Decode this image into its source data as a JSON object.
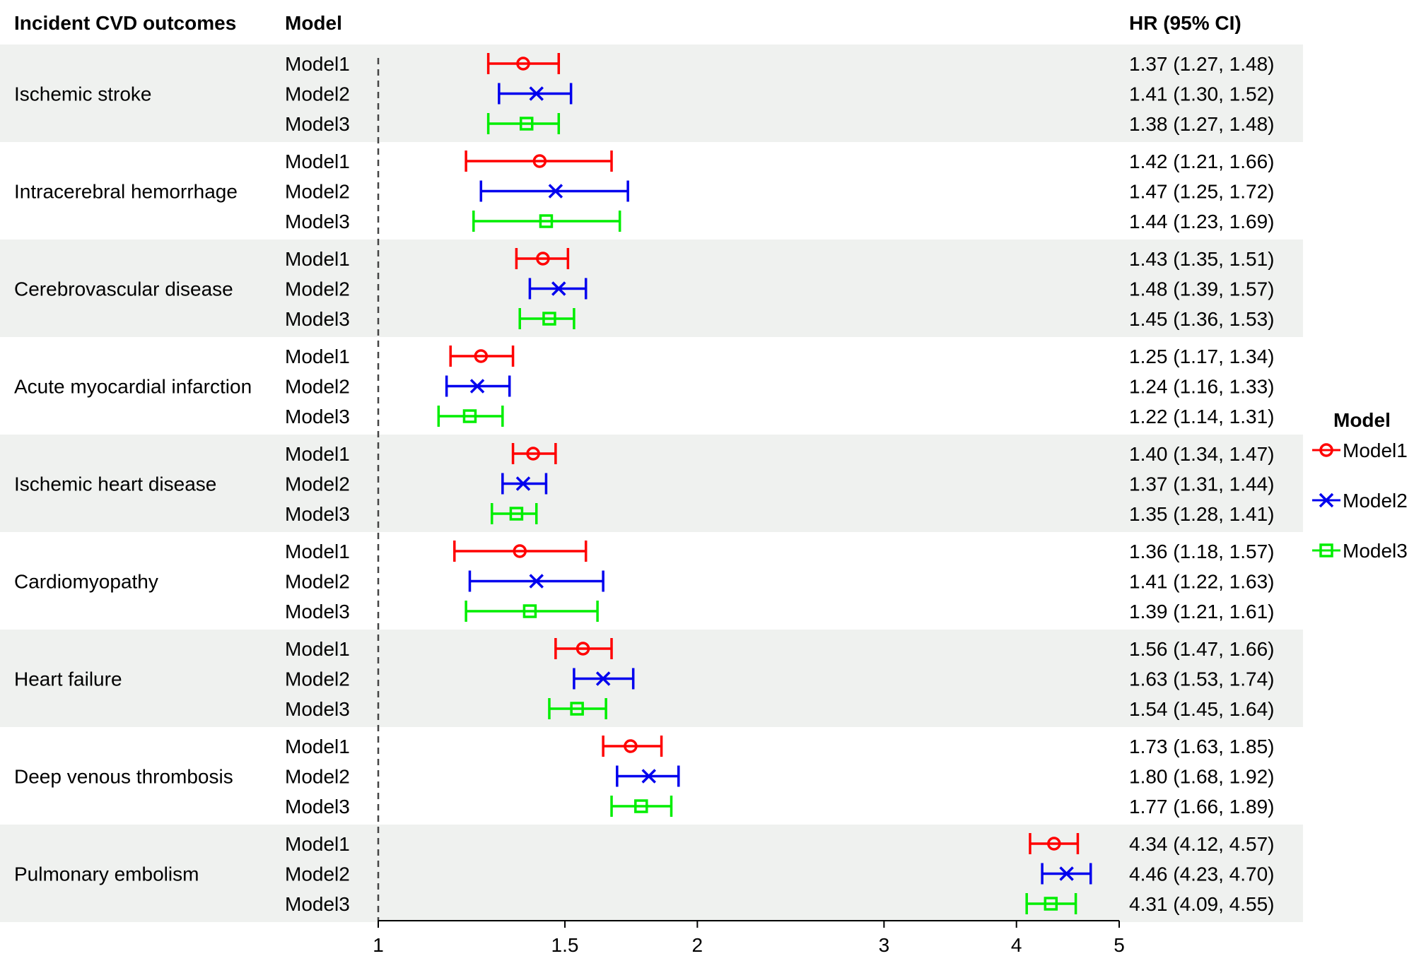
{
  "chart_data": {
    "type": "forest",
    "headers": {
      "outcome": "Incident CVD outcomes",
      "model": "Model",
      "hr": "HR (95% CI)"
    },
    "xaxis": {
      "scale": "log",
      "reference_line": 1,
      "ticks": [
        1,
        1.5,
        2,
        3,
        4,
        5
      ],
      "tick_labels": [
        "1",
        "1.5",
        "2",
        "3",
        "4",
        "5"
      ]
    },
    "legend": {
      "title": "Model",
      "placement": "right",
      "entries": [
        {
          "name": "Model1",
          "color": "#ff0000",
          "marker": "circle"
        },
        {
          "name": "Model2",
          "color": "#0000ee",
          "marker": "x"
        },
        {
          "name": "Model3",
          "color": "#00ee00",
          "marker": "square"
        }
      ]
    },
    "groups": [
      {
        "outcome": "Ischemic stroke",
        "shaded": true,
        "rows": [
          {
            "model": "Model1",
            "hr": 1.37,
            "lo": 1.27,
            "hi": 1.48,
            "text": "1.37 (1.27, 1.48)"
          },
          {
            "model": "Model2",
            "hr": 1.41,
            "lo": 1.3,
            "hi": 1.52,
            "text": "1.41 (1.30, 1.52)"
          },
          {
            "model": "Model3",
            "hr": 1.38,
            "lo": 1.27,
            "hi": 1.48,
            "text": "1.38 (1.27, 1.48)"
          }
        ]
      },
      {
        "outcome": "Intracerebral hemorrhage",
        "shaded": false,
        "rows": [
          {
            "model": "Model1",
            "hr": 1.42,
            "lo": 1.21,
            "hi": 1.66,
            "text": "1.42 (1.21, 1.66)"
          },
          {
            "model": "Model2",
            "hr": 1.47,
            "lo": 1.25,
            "hi": 1.72,
            "text": "1.47 (1.25, 1.72)"
          },
          {
            "model": "Model3",
            "hr": 1.44,
            "lo": 1.23,
            "hi": 1.69,
            "text": "1.44 (1.23, 1.69)"
          }
        ]
      },
      {
        "outcome": "Cerebrovascular disease",
        "shaded": true,
        "rows": [
          {
            "model": "Model1",
            "hr": 1.43,
            "lo": 1.35,
            "hi": 1.51,
            "text": "1.43 (1.35, 1.51)"
          },
          {
            "model": "Model2",
            "hr": 1.48,
            "lo": 1.39,
            "hi": 1.57,
            "text": "1.48 (1.39, 1.57)"
          },
          {
            "model": "Model3",
            "hr": 1.45,
            "lo": 1.36,
            "hi": 1.53,
            "text": "1.45 (1.36, 1.53)"
          }
        ]
      },
      {
        "outcome": "Acute myocardial infarction",
        "shaded": false,
        "rows": [
          {
            "model": "Model1",
            "hr": 1.25,
            "lo": 1.17,
            "hi": 1.34,
            "text": "1.25 (1.17, 1.34)"
          },
          {
            "model": "Model2",
            "hr": 1.24,
            "lo": 1.16,
            "hi": 1.33,
            "text": "1.24 (1.16, 1.33)"
          },
          {
            "model": "Model3",
            "hr": 1.22,
            "lo": 1.14,
            "hi": 1.31,
            "text": "1.22 (1.14, 1.31)"
          }
        ]
      },
      {
        "outcome": "Ischemic heart disease",
        "shaded": true,
        "rows": [
          {
            "model": "Model1",
            "hr": 1.4,
            "lo": 1.34,
            "hi": 1.47,
            "text": "1.40 (1.34, 1.47)"
          },
          {
            "model": "Model2",
            "hr": 1.37,
            "lo": 1.31,
            "hi": 1.44,
            "text": "1.37 (1.31, 1.44)"
          },
          {
            "model": "Model3",
            "hr": 1.35,
            "lo": 1.28,
            "hi": 1.41,
            "text": "1.35 (1.28, 1.41)"
          }
        ]
      },
      {
        "outcome": "Cardiomyopathy",
        "shaded": false,
        "rows": [
          {
            "model": "Model1",
            "hr": 1.36,
            "lo": 1.18,
            "hi": 1.57,
            "text": "1.36 (1.18, 1.57)"
          },
          {
            "model": "Model2",
            "hr": 1.41,
            "lo": 1.22,
            "hi": 1.63,
            "text": "1.41 (1.22, 1.63)"
          },
          {
            "model": "Model3",
            "hr": 1.39,
            "lo": 1.21,
            "hi": 1.61,
            "text": "1.39 (1.21, 1.61)"
          }
        ]
      },
      {
        "outcome": "Heart failure",
        "shaded": true,
        "rows": [
          {
            "model": "Model1",
            "hr": 1.56,
            "lo": 1.47,
            "hi": 1.66,
            "text": "1.56 (1.47, 1.66)"
          },
          {
            "model": "Model2",
            "hr": 1.63,
            "lo": 1.53,
            "hi": 1.74,
            "text": "1.63 (1.53, 1.74)"
          },
          {
            "model": "Model3",
            "hr": 1.54,
            "lo": 1.45,
            "hi": 1.64,
            "text": "1.54 (1.45, 1.64)"
          }
        ]
      },
      {
        "outcome": "Deep venous thrombosis",
        "shaded": false,
        "rows": [
          {
            "model": "Model1",
            "hr": 1.73,
            "lo": 1.63,
            "hi": 1.85,
            "text": "1.73 (1.63, 1.85)"
          },
          {
            "model": "Model2",
            "hr": 1.8,
            "lo": 1.68,
            "hi": 1.92,
            "text": "1.80 (1.68, 1.92)"
          },
          {
            "model": "Model3",
            "hr": 1.77,
            "lo": 1.66,
            "hi": 1.89,
            "text": "1.77 (1.66, 1.89)"
          }
        ]
      },
      {
        "outcome": "Pulmonary embolism",
        "shaded": true,
        "rows": [
          {
            "model": "Model1",
            "hr": 4.34,
            "lo": 4.12,
            "hi": 4.57,
            "text": "4.34 (4.12, 4.57)"
          },
          {
            "model": "Model2",
            "hr": 4.46,
            "lo": 4.23,
            "hi": 4.7,
            "text": "4.46 (4.23, 4.70)"
          },
          {
            "model": "Model3",
            "hr": 4.31,
            "lo": 4.09,
            "hi": 4.55,
            "text": "4.31 (4.09, 4.55)"
          }
        ]
      }
    ]
  }
}
